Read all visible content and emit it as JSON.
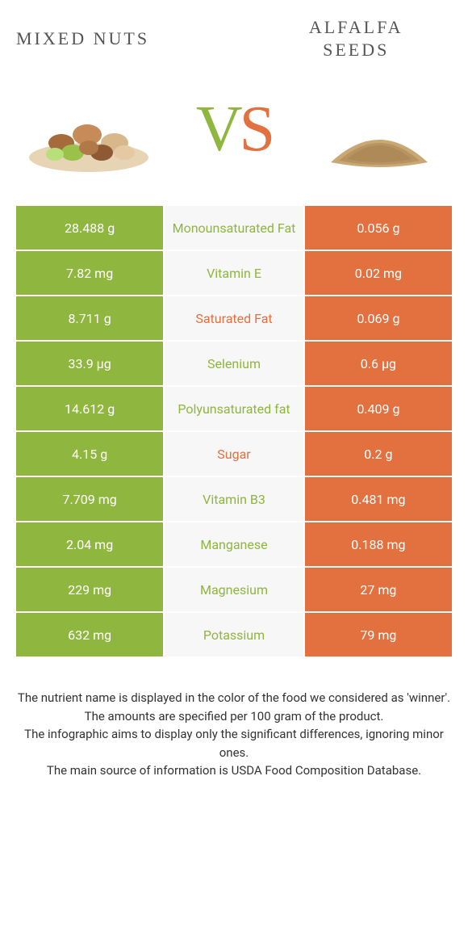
{
  "header": {
    "left_title": "MIXED NUTS",
    "right_title_l1": "ALFALFA",
    "right_title_l2": "SEEDS",
    "vs_v": "V",
    "vs_s": "S"
  },
  "colors": {
    "left": "#8fb63f",
    "right": "#e3703f",
    "mid_bg": "#f7f7f7"
  },
  "rows": [
    {
      "left": "28.488 g",
      "label": "Monounsaturated Fat",
      "winner": "left",
      "right": "0.056 g"
    },
    {
      "left": "7.82 mg",
      "label": "Vitamin E",
      "winner": "left",
      "right": "0.02 mg"
    },
    {
      "left": "8.711 g",
      "label": "Saturated Fat",
      "winner": "right",
      "right": "0.069 g"
    },
    {
      "left": "33.9 µg",
      "label": "Selenium",
      "winner": "left",
      "right": "0.6 µg"
    },
    {
      "left": "14.612 g",
      "label": "Polyunsaturated fat",
      "winner": "left",
      "right": "0.409 g"
    },
    {
      "left": "4.15 g",
      "label": "Sugar",
      "winner": "right",
      "right": "0.2 g"
    },
    {
      "left": "7.709 mg",
      "label": "Vitamin B3",
      "winner": "left",
      "right": "0.481 mg"
    },
    {
      "left": "2.04 mg",
      "label": "Manganese",
      "winner": "left",
      "right": "0.188 mg"
    },
    {
      "left": "229 mg",
      "label": "Magnesium",
      "winner": "left",
      "right": "27 mg"
    },
    {
      "left": "632 mg",
      "label": "Potassium",
      "winner": "left",
      "right": "79 mg"
    }
  ],
  "footer": {
    "l1": "The nutrient name is displayed in the color of the food we considered as 'winner'.",
    "l2": "The amounts are specified per 100 gram of the product.",
    "l3": "The infographic aims to display only the significant differences, ignoring minor ones.",
    "l4": "The main source of information is USDA Food Composition Database."
  }
}
